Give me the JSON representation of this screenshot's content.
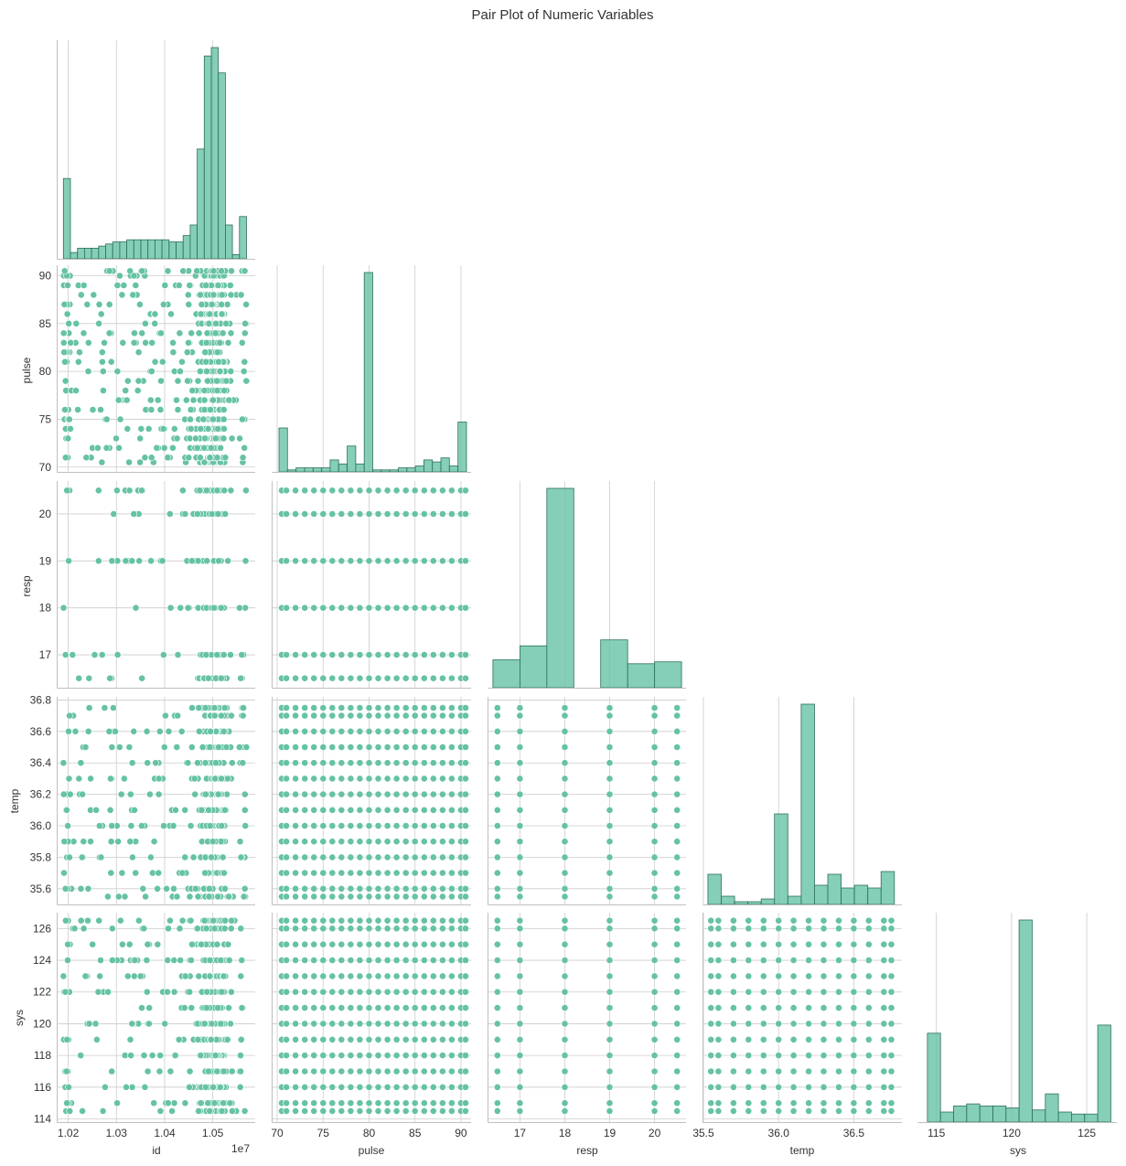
{
  "chart_data": {
    "type": "scatter",
    "title": "Pair Plot of Numeric Variables",
    "variables": [
      "id",
      "pulse",
      "resp",
      "temp",
      "sys"
    ],
    "axis_labels": {
      "id": "id",
      "pulse": "pulse",
      "resp": "resp",
      "temp": "temp",
      "sys": "sys"
    },
    "offset_label": "1e7",
    "grid": true,
    "layout": "lower-triangle (corner)",
    "colors": {
      "marker": "#66c2a5",
      "hist_fill": "#66c2a5",
      "hist_edge": "#2f6f5e",
      "grid": "#cccccc",
      "spine": "#bfbfbf",
      "text": "#333333"
    },
    "ticks": {
      "id": {
        "values": [
          10200000,
          10300000,
          10400000,
          10500000
        ],
        "labels": [
          "1.02",
          "1.03",
          "1.04",
          "1.05"
        ]
      },
      "pulse": {
        "values": [
          70,
          75,
          80,
          85,
          90
        ],
        "labels": [
          "70",
          "75",
          "80",
          "85",
          "90"
        ]
      },
      "resp": {
        "values": [
          17,
          18,
          19,
          20
        ],
        "labels": [
          "17",
          "18",
          "19",
          "20"
        ]
      },
      "temp_y": {
        "values": [
          35.6,
          35.8,
          36.0,
          36.2,
          36.4,
          36.6,
          36.8
        ],
        "labels": [
          "35.6",
          "35.8",
          "36.0",
          "36.2",
          "36.4",
          "36.6",
          "36.8"
        ]
      },
      "temp_x": {
        "values": [
          35.5,
          36.0,
          36.5
        ],
        "labels": [
          "35.5",
          "36.0",
          "36.5"
        ]
      },
      "sys_y": {
        "values": [
          114,
          116,
          118,
          120,
          122,
          124,
          126
        ],
        "labels": [
          "114",
          "116",
          "118",
          "120",
          "122",
          "124",
          "126"
        ]
      },
      "sys_x": {
        "values": [
          115,
          120,
          125
        ],
        "labels": [
          "115",
          "120",
          "125"
        ]
      }
    },
    "ranges": {
      "id": [
        10178000,
        10588000
      ],
      "pulse": [
        69.5,
        91.1
      ],
      "resp": [
        16.3,
        20.7
      ],
      "temp": [
        35.5,
        36.82
      ],
      "sys": [
        113.8,
        127.0
      ]
    },
    "levels": {
      "pulse": [
        70.5,
        71,
        72,
        73,
        74,
        75,
        76,
        77,
        78,
        79,
        80,
        81,
        82,
        83,
        84,
        85,
        86,
        87,
        88,
        89,
        90,
        90.5
      ],
      "resp": [
        16.5,
        17,
        18,
        19,
        20,
        20.5
      ],
      "temp": [
        35.55,
        35.6,
        35.7,
        35.8,
        35.9,
        36.0,
        36.1,
        36.2,
        36.3,
        36.4,
        36.5,
        36.6,
        36.7,
        36.75
      ],
      "sys": [
        114.5,
        115,
        116,
        117,
        118,
        119,
        120,
        121,
        122,
        123,
        124,
        125,
        126,
        126.5
      ]
    },
    "histograms": {
      "id": {
        "range": [
          10190000,
          10570000
        ],
        "counts": [
          38,
          3,
          5,
          5,
          5,
          6,
          7,
          8,
          8,
          9,
          9,
          9,
          9,
          9,
          9,
          8,
          8,
          11,
          16,
          52,
          96,
          100,
          88,
          16,
          2,
          20
        ]
      },
      "pulse": {
        "range": [
          70.2,
          90.6
        ],
        "counts": [
          22,
          1,
          2,
          2,
          2,
          2,
          6,
          4,
          13,
          4,
          100,
          1,
          1,
          1,
          2,
          2,
          3,
          6,
          5,
          7,
          3,
          25
        ]
      },
      "resp": {
        "range": [
          16.4,
          20.6
        ],
        "counts": [
          14,
          21,
          100,
          0,
          24,
          12,
          13
        ]
      },
      "temp": {
        "range": [
          35.53,
          36.77
        ],
        "counts": [
          11,
          3,
          1,
          1,
          2,
          33,
          3,
          73,
          7,
          11,
          6,
          7,
          6,
          12
        ]
      },
      "sys": {
        "range": [
          114.4,
          126.6
        ],
        "counts": [
          44,
          5,
          8,
          9,
          8,
          8,
          7,
          100,
          6,
          14,
          5,
          4,
          4,
          48
        ]
      }
    }
  }
}
